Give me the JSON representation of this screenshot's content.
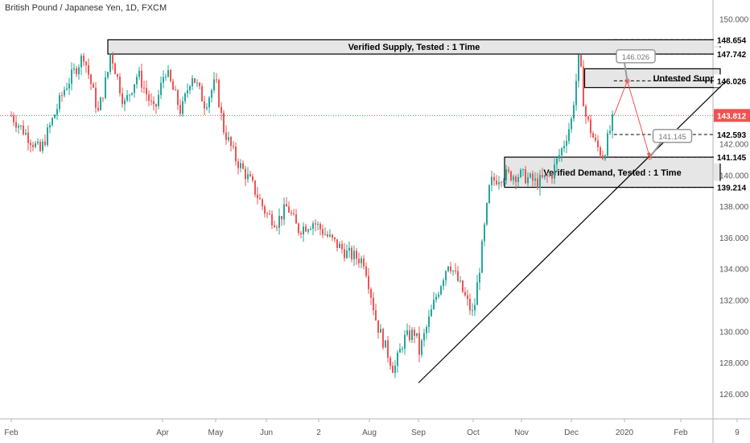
{
  "header": {
    "title": "British Pound / Japanese Yen, 1D, FXCM"
  },
  "colors": {
    "up": "#26a69a",
    "down": "#ef5350",
    "price_line": "#ef5350",
    "text": "#131722",
    "axis_bg": "#ffffff"
  },
  "chart_data": {
    "type": "candlestick",
    "title": "British Pound / Japanese Yen, 1D, FXCM",
    "ylim": [
      124.4,
      151.2
    ],
    "y_ticks": [
      126,
      128,
      130,
      132,
      134,
      136,
      138,
      140,
      142,
      150
    ],
    "y_tick_labels": [
      "126.000",
      "128.000",
      "130.000",
      "132.000",
      "134.000",
      "136.000",
      "138.000",
      "140.000",
      "142.000",
      "150.000"
    ],
    "x_labels": [
      {
        "label": "Feb",
        "t": 0
      },
      {
        "label": "Apr",
        "t": 2
      },
      {
        "label": "May",
        "t": 3
      },
      {
        "label": "Jun",
        "t": 4
      },
      {
        "label": "2",
        "t": 5
      },
      {
        "label": "Aug",
        "t": 6
      },
      {
        "label": "Sep",
        "t": 7
      },
      {
        "label": "Oct",
        "t": 8
      },
      {
        "label": "Nov",
        "t": 9
      },
      {
        "label": "Dec",
        "t": 10
      },
      {
        "label": "2020",
        "t": 11
      },
      {
        "label": "Feb",
        "t": 12
      },
      {
        "label": "9",
        "t": 13
      }
    ],
    "price_path": [
      [
        0,
        143.8
      ],
      [
        0.3,
        141.5
      ],
      [
        0.55,
        145.5
      ],
      [
        0.75,
        147.7
      ],
      [
        0.9,
        144.0
      ],
      [
        1.05,
        147.9
      ],
      [
        1.3,
        144.5
      ],
      [
        1.55,
        146.5
      ],
      [
        1.85,
        144.0
      ],
      [
        2.05,
        146.8
      ],
      [
        2.35,
        144.0
      ],
      [
        2.55,
        146.5
      ],
      [
        2.8,
        144.5
      ],
      [
        3.0,
        146.0
      ],
      [
        3.15,
        143.0
      ],
      [
        3.4,
        141.0
      ],
      [
        3.7,
        139.5
      ],
      [
        4.0,
        137.5
      ],
      [
        4.2,
        137.0
      ],
      [
        4.4,
        138.0
      ],
      [
        4.6,
        136.5
      ],
      [
        4.9,
        137.0
      ],
      [
        5.2,
        136.0
      ],
      [
        5.55,
        135.0
      ],
      [
        5.9,
        134.5
      ],
      [
        6.15,
        130.5
      ],
      [
        6.5,
        127.5
      ],
      [
        6.7,
        129.5
      ],
      [
        6.95,
        130.0
      ],
      [
        7.0,
        128.5
      ],
      [
        7.3,
        132.0
      ],
      [
        7.55,
        134.5
      ],
      [
        7.75,
        133.0
      ],
      [
        8.0,
        131.0
      ],
      [
        8.15,
        134.5
      ],
      [
        8.35,
        139.5
      ],
      [
        8.6,
        140.0
      ],
      [
        9.0,
        140.0
      ],
      [
        9.3,
        139.5
      ],
      [
        9.6,
        140.0
      ],
      [
        9.85,
        142.0
      ],
      [
        10.0,
        143.5
      ],
      [
        10.15,
        147.7
      ],
      [
        10.25,
        144.0
      ],
      [
        10.45,
        142.0
      ],
      [
        10.6,
        141.2
      ],
      [
        10.8,
        143.8
      ]
    ],
    "horizontal_levels": [
      {
        "value": 148.654,
        "label": "148.654"
      },
      {
        "value": 147.742,
        "label": "147.742"
      },
      {
        "value": 146.026,
        "label": "146.026"
      },
      {
        "value": 143.812,
        "label": "143.812",
        "current": true
      },
      {
        "value": 142.593,
        "label": "142.593"
      },
      {
        "value": 141.145,
        "label": "141.145"
      },
      {
        "value": 139.214,
        "label": "139.214"
      }
    ],
    "zones": [
      {
        "name": "Verified Supply, Tested : 1 Time",
        "top": 148.654,
        "bottom": 147.742,
        "t_start": 1.0,
        "t_end": 12.7
      },
      {
        "name": "Untested Supply",
        "top": 146.8,
        "bottom": 145.6,
        "t_start": 10.25,
        "t_end": 12.7
      },
      {
        "name": "Verified Demand, Tested : 1 Time",
        "top": 141.145,
        "bottom": 139.214,
        "t_start": 8.65,
        "t_end": 12.7
      }
    ],
    "trendline": {
      "from": [
        7.0,
        126.7
      ],
      "to": [
        12.8,
        146.0
      ]
    },
    "projection": [
      [
        10.8,
        143.8
      ],
      [
        11.05,
        146.026
      ],
      [
        11.45,
        141.145
      ]
    ],
    "callouts": [
      {
        "label": "146.026",
        "t": 11.2,
        "value": 147.6
      },
      {
        "label": "141.145",
        "t": 11.85,
        "value": 142.5
      }
    ]
  }
}
